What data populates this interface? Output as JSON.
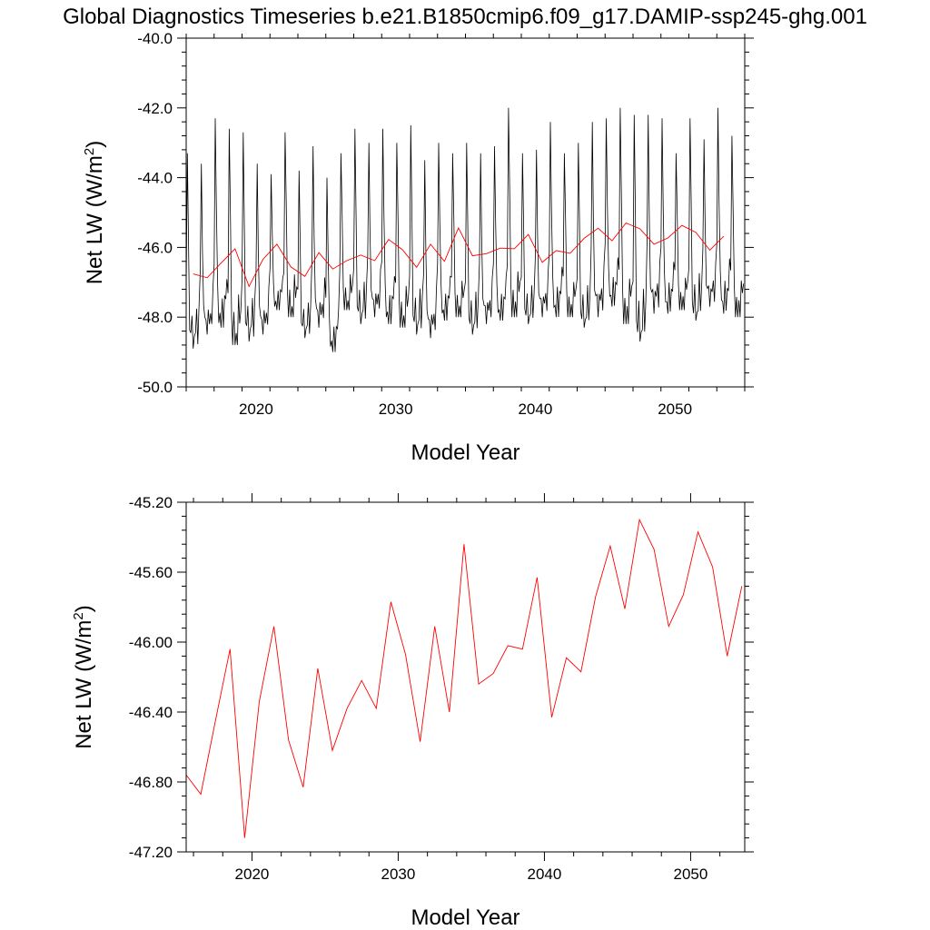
{
  "title": "Global Diagnostics Timeseries b.e21.B1850cmip6.f09_g17.DAMIP-ssp245-ghg.001",
  "chart_data": [
    {
      "type": "line",
      "xlabel": "Model Year",
      "ylabel_main": "Net LW (W/m",
      "ylabel_sup": "2",
      "ylabel_close": ")",
      "xlim": [
        2015,
        2055
      ],
      "ylim": [
        -50.0,
        -40.0
      ],
      "xticks": [
        2020,
        2030,
        2040,
        2050
      ],
      "xtick_labels": [
        "2020",
        "2030",
        "2040",
        "2050"
      ],
      "yticks": [
        -50.0,
        -48.0,
        -46.0,
        -44.0,
        -42.0,
        -40.0
      ],
      "ytick_labels": [
        "-50.0",
        "-48.0",
        "-46.0",
        "-44.0",
        "-42.0",
        "-40.0"
      ],
      "series": [
        {
          "color": "#000000",
          "kind": "monthly",
          "start_year": 2015,
          "annual_peaks": [
            -43.3,
            -43.6,
            -42.3,
            -42.6,
            -42.7,
            -43.6,
            -43.9,
            -42.7,
            -43.8,
            -43.1,
            -44.0,
            -43.3,
            -42.6,
            -43.0,
            -42.6,
            -43.0,
            -42.5,
            -43.5,
            -43.0,
            -43.3,
            -43.0,
            -43.3,
            -43.1,
            -42.0,
            -43.3,
            -43.2,
            -42.4,
            -43.3,
            -43.0,
            -42.4,
            -42.3,
            -42.0,
            -42.2,
            -42.2,
            -42.3,
            -43.3,
            -42.3,
            -42.9,
            -42.0,
            -42.8
          ],
          "annual_troughs": [
            -48.9,
            -48.5,
            -48.3,
            -48.8,
            -48.7,
            -48.5,
            -47.8,
            -48.0,
            -48.6,
            -48.3,
            -49.0,
            -47.8,
            -48.2,
            -48.0,
            -48.2,
            -48.3,
            -48.5,
            -48.6,
            -48.1,
            -48.0,
            -48.5,
            -48.2,
            -48.1,
            -48.0,
            -48.2,
            -48.0,
            -48.0,
            -48.0,
            -48.3,
            -48.0,
            -47.7,
            -48.2,
            -48.7,
            -47.9,
            -47.9,
            -47.8,
            -48.1,
            -47.7,
            -47.9,
            -48.0
          ]
        },
        {
          "color": "#ff0000",
          "kind": "annual",
          "x": [
            2015.5,
            2016.5,
            2017.5,
            2018.5,
            2019.5,
            2020.5,
            2021.5,
            2022.5,
            2023.5,
            2024.5,
            2025.5,
            2026.5,
            2027.5,
            2028.5,
            2029.5,
            2030.5,
            2031.5,
            2032.5,
            2033.5,
            2034.5,
            2035.5,
            2036.5,
            2037.5,
            2038.5,
            2039.5,
            2040.5,
            2041.5,
            2042.5,
            2043.5,
            2044.5,
            2045.5,
            2046.5,
            2047.5,
            2048.5,
            2049.5,
            2050.5,
            2051.5,
            2052.5,
            2053.5
          ],
          "values": [
            -46.76,
            -46.87,
            -46.45,
            -46.04,
            -47.12,
            -46.34,
            -45.91,
            -46.56,
            -46.83,
            -46.15,
            -46.62,
            -46.38,
            -46.22,
            -46.38,
            -45.77,
            -46.07,
            -46.57,
            -45.91,
            -46.4,
            -45.44,
            -46.24,
            -46.18,
            -46.02,
            -46.04,
            -45.63,
            -46.43,
            -46.09,
            -46.17,
            -45.74,
            -45.45,
            -45.81,
            -45.3,
            -45.47,
            -45.91,
            -45.73,
            -45.37,
            -45.57,
            -46.08,
            -45.68
          ]
        }
      ]
    },
    {
      "type": "line",
      "xlabel": "Model Year",
      "ylabel_main": "Net LW (W/m",
      "ylabel_sup": "2",
      "ylabel_close": ")",
      "xlim": [
        2015.5,
        2053.7
      ],
      "ylim": [
        -47.2,
        -45.2
      ],
      "xticks": [
        2020,
        2030,
        2040,
        2050
      ],
      "xtick_labels": [
        "2020",
        "2030",
        "2040",
        "2050"
      ],
      "yticks": [
        -47.2,
        -46.8,
        -46.4,
        -46.0,
        -45.6,
        -45.2
      ],
      "ytick_labels": [
        "-47.20",
        "-46.80",
        "-46.40",
        "-46.00",
        "-45.60",
        "-45.20"
      ],
      "series": [
        {
          "color": "#ff0000",
          "kind": "annual",
          "x": [
            2015.5,
            2016.5,
            2017.5,
            2018.5,
            2019.5,
            2020.5,
            2021.5,
            2022.5,
            2023.5,
            2024.5,
            2025.5,
            2026.5,
            2027.5,
            2028.5,
            2029.5,
            2030.5,
            2031.5,
            2032.5,
            2033.5,
            2034.5,
            2035.5,
            2036.5,
            2037.5,
            2038.5,
            2039.5,
            2040.5,
            2041.5,
            2042.5,
            2043.5,
            2044.5,
            2045.5,
            2046.5,
            2047.5,
            2048.5,
            2049.5,
            2050.5,
            2051.5,
            2052.5,
            2053.5
          ],
          "values": [
            -46.76,
            -46.87,
            -46.45,
            -46.04,
            -47.12,
            -46.34,
            -45.91,
            -46.56,
            -46.83,
            -46.15,
            -46.62,
            -46.38,
            -46.22,
            -46.38,
            -45.77,
            -46.07,
            -46.57,
            -45.91,
            -46.4,
            -45.44,
            -46.24,
            -46.18,
            -46.02,
            -46.04,
            -45.63,
            -46.43,
            -46.09,
            -46.17,
            -45.74,
            -45.45,
            -45.81,
            -45.3,
            -45.47,
            -45.91,
            -45.73,
            -45.37,
            -45.57,
            -46.08,
            -45.68
          ]
        }
      ]
    }
  ]
}
